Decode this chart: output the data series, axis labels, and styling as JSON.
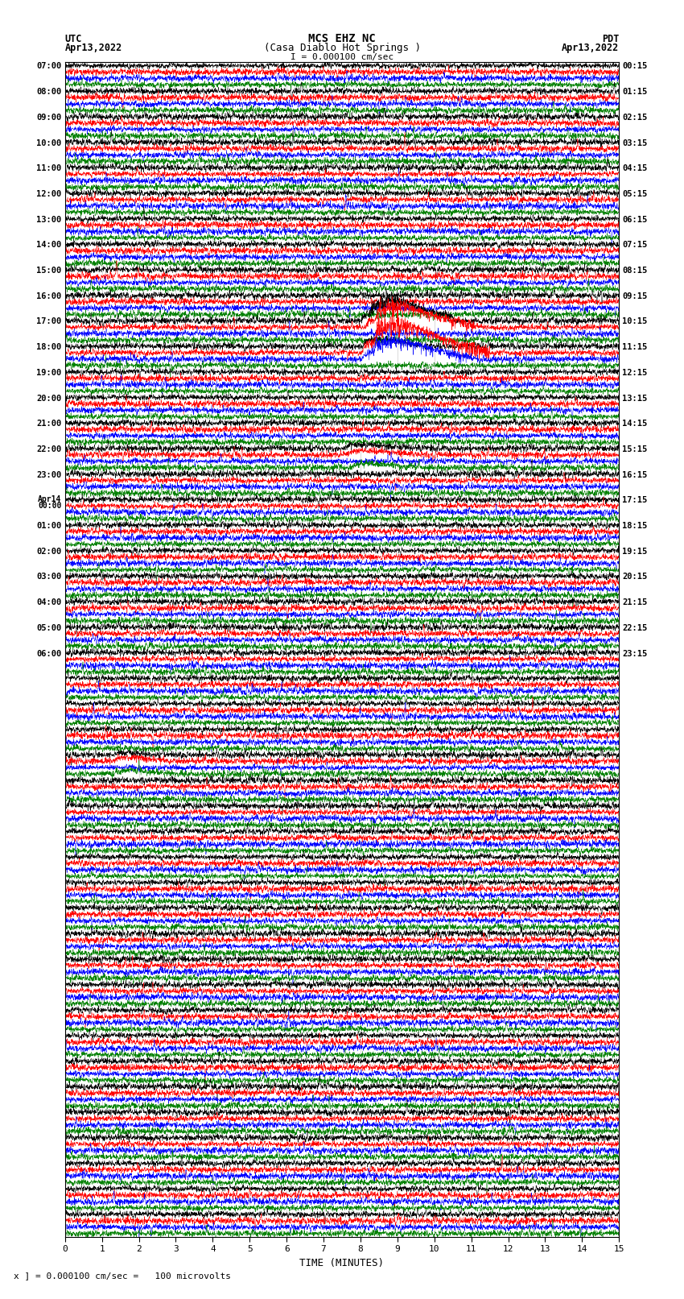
{
  "title_line1": "MCS EHZ NC",
  "title_line2": "(Casa Diablo Hot Springs )",
  "scale_label": "I = 0.000100 cm/sec",
  "left_header_line1": "UTC",
  "left_header_line2": "Apr13,2022",
  "right_header_line1": "PDT",
  "right_header_line2": "Apr13,2022",
  "footer_note": "x ] = 0.000100 cm/sec =   100 microvolts",
  "xlabel": "TIME (MINUTES)",
  "colors": [
    "black",
    "red",
    "blue",
    "green"
  ],
  "num_rows": 46,
  "traces_per_row": 4,
  "minutes_per_row": 15,
  "fig_width": 8.5,
  "fig_height": 16.13,
  "left_utc_times": [
    "07:00",
    "08:00",
    "09:00",
    "10:00",
    "11:00",
    "12:00",
    "13:00",
    "14:00",
    "15:00",
    "16:00",
    "17:00",
    "18:00",
    "19:00",
    "20:00",
    "21:00",
    "22:00",
    "23:00",
    "Apr14\n00:00",
    "01:00",
    "02:00",
    "03:00",
    "04:00",
    "05:00",
    "06:00"
  ],
  "right_pdt_times": [
    "00:15",
    "01:15",
    "02:15",
    "03:15",
    "04:15",
    "05:15",
    "06:15",
    "07:15",
    "08:15",
    "09:15",
    "10:15",
    "11:15",
    "12:15",
    "13:15",
    "14:15",
    "15:15",
    "16:15",
    "17:15",
    "18:15",
    "19:15",
    "20:15",
    "21:15",
    "22:15",
    "23:15"
  ],
  "amp_scale": 0.42,
  "noise_base_std": 0.55,
  "sample_rate": 3000,
  "event1_row": 10,
  "event1_minute": 8.0,
  "event2_row": 11,
  "event2_minute": 8.0,
  "event3_row": 15,
  "event3_minute": 7.5,
  "event4_row": 27,
  "event4_minute": 1.5,
  "event5_row": 38,
  "event5_minute": 7.5
}
